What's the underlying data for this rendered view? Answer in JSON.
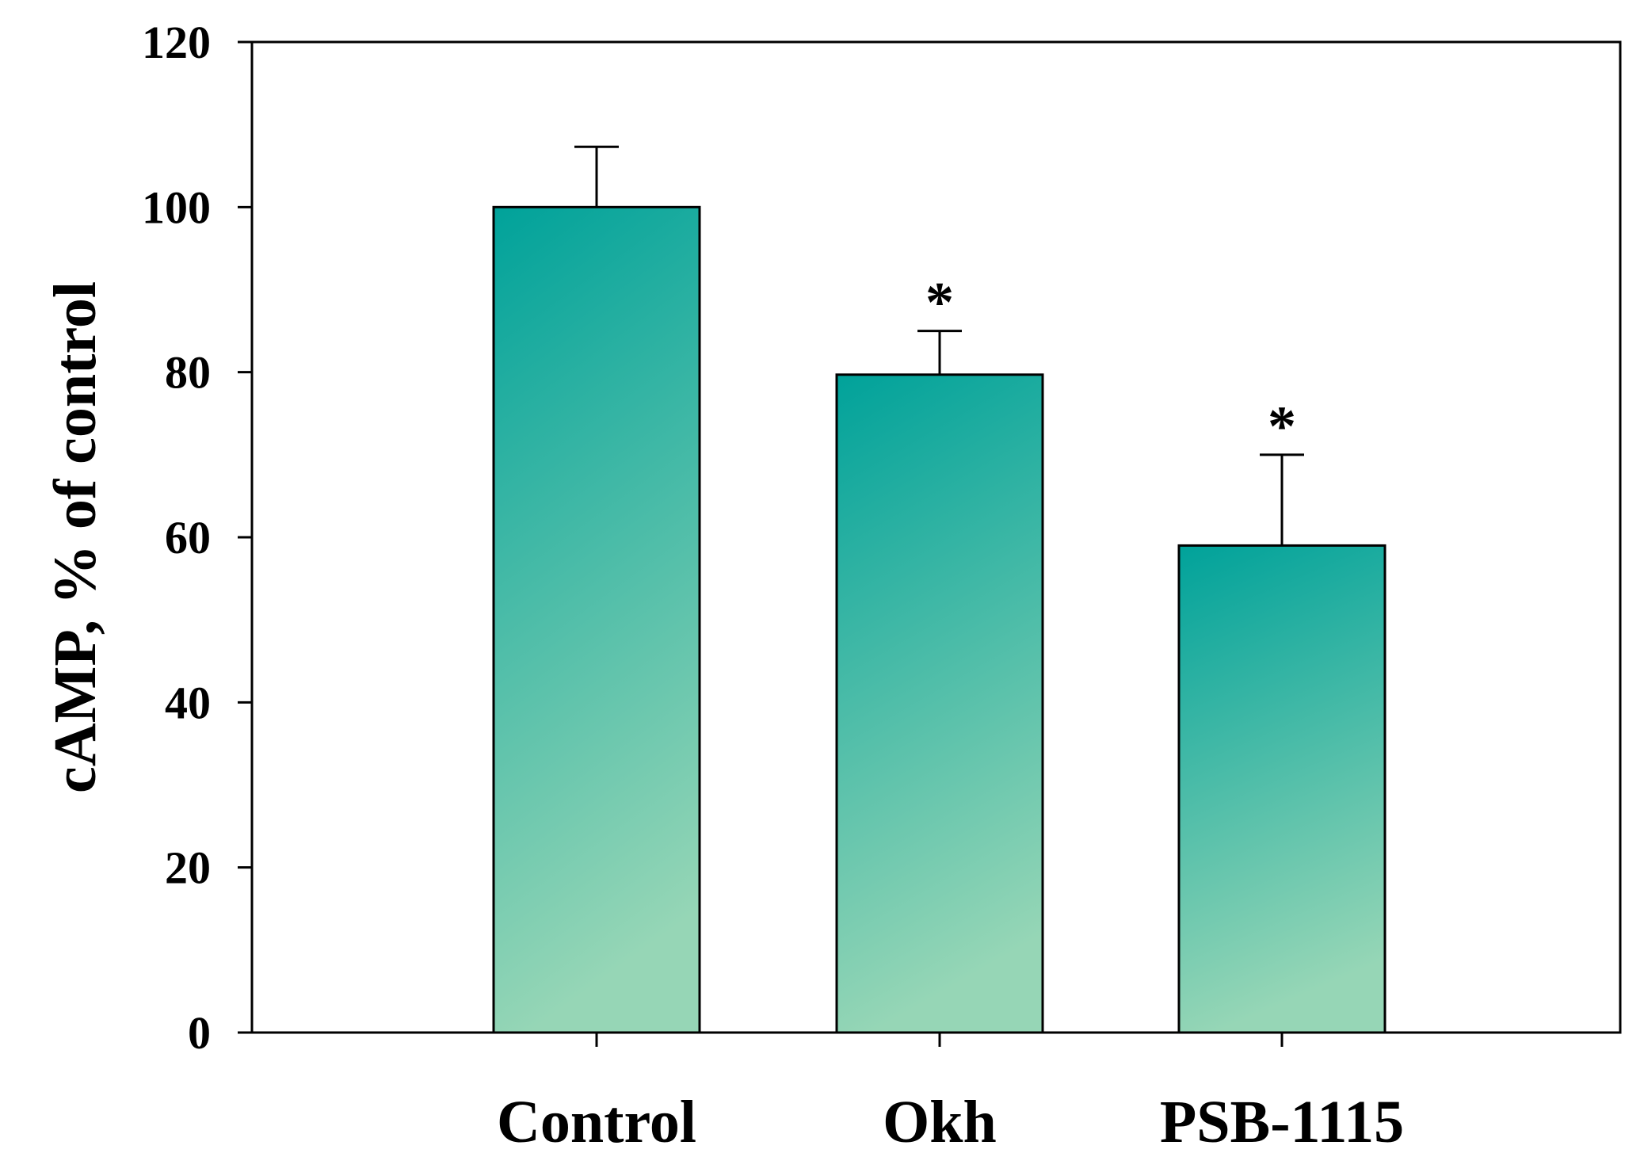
{
  "chart_data": {
    "type": "bar",
    "title": "",
    "xlabel": "",
    "ylabel": "cAMP, % of control",
    "categories": [
      "Control",
      "Okh",
      "PSB-1115"
    ],
    "values": [
      100,
      79.7,
      59
    ],
    "error_plus": [
      7.3,
      5.3,
      11
    ],
    "significance": [
      "",
      "*",
      "*"
    ],
    "ylim": [
      0,
      120
    ],
    "yticks": [
      0,
      20,
      40,
      60,
      80,
      100,
      120
    ],
    "ytick_labels": [
      "0",
      "20",
      "40",
      "60",
      "80",
      "100",
      "120"
    ],
    "grid": false,
    "legend": "none",
    "colors": {
      "bar_top": "#00A29A",
      "bar_bottom": "#96D6B6",
      "edge": "#000000"
    }
  }
}
